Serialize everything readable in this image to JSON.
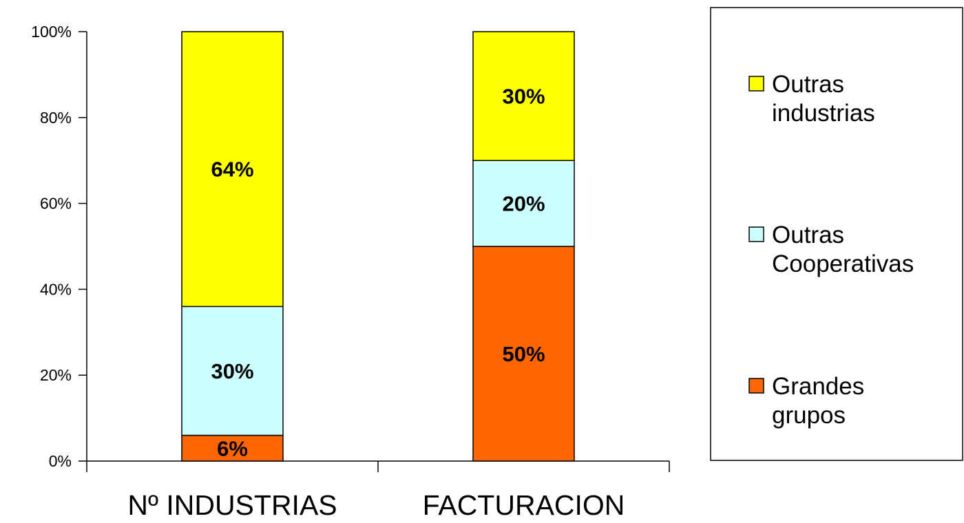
{
  "chart_data": {
    "type": "bar",
    "stacked": true,
    "percent": true,
    "categories": [
      "Nº INDUSTRIAS",
      "FACTURACION"
    ],
    "series": [
      {
        "name": "Grandes grupos",
        "values": [
          6,
          50
        ],
        "labels": [
          "6%",
          "50%"
        ],
        "color": "#FF6600"
      },
      {
        "name": "Outras Cooperativas",
        "values": [
          30,
          20
        ],
        "labels": [
          "30%",
          "20%"
        ],
        "color": "#CCFFFF"
      },
      {
        "name": "Outras industrias",
        "values": [
          64,
          30
        ],
        "labels": [
          "64%",
          "30%"
        ],
        "color": "#FFFF00"
      }
    ],
    "legend": {
      "position": "right",
      "entries": [
        {
          "series": 2,
          "lines": [
            "Outras",
            "industrias"
          ]
        },
        {
          "series": 1,
          "lines": [
            "Outras",
            "Cooperativas"
          ]
        },
        {
          "series": 0,
          "lines": [
            "Grandes",
            "grupos"
          ]
        }
      ]
    },
    "ylim": [
      0,
      100
    ],
    "yticks": [
      0,
      20,
      40,
      60,
      80,
      100
    ],
    "ytick_labels": [
      "0%",
      "20%",
      "40%",
      "60%",
      "80%",
      "100%"
    ],
    "grid": false
  }
}
